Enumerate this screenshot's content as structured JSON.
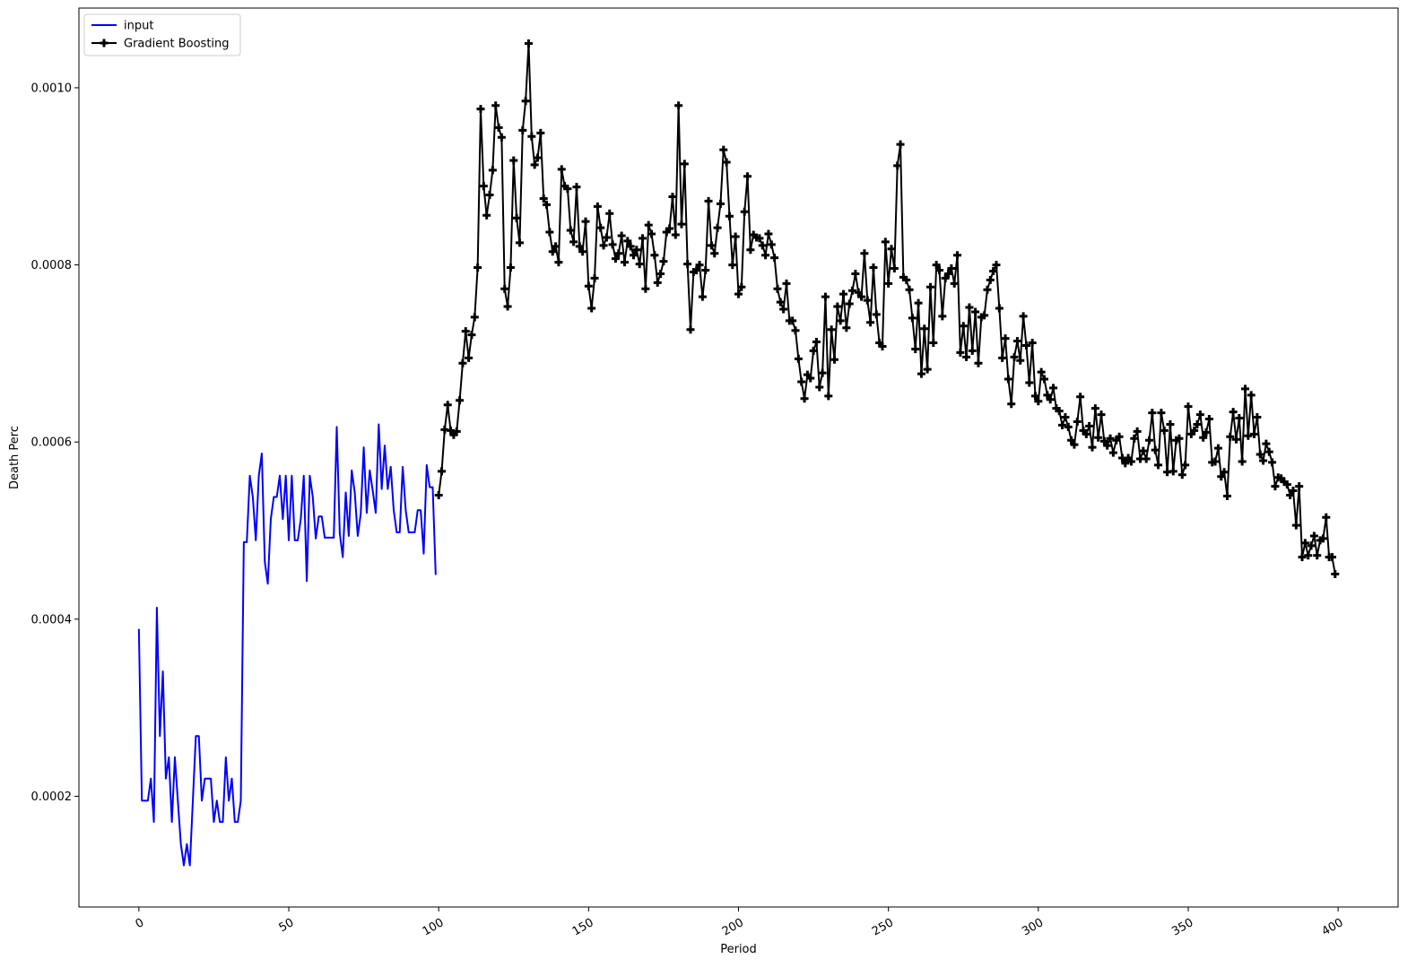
{
  "chart_data": {
    "type": "line",
    "xlabel": "Period",
    "ylabel": "Death Perc",
    "xlim": [
      -20,
      420
    ],
    "ylim": [
      7.5e-05,
      0.00109
    ],
    "x_ticks": [
      0,
      50,
      100,
      150,
      200,
      250,
      300,
      350,
      400
    ],
    "x_tick_labels": [
      "0",
      "50",
      "100",
      "150",
      "200",
      "250",
      "300",
      "350",
      "400"
    ],
    "y_ticks": [
      0.0002,
      0.0004,
      0.0006,
      0.0008,
      0.001
    ],
    "y_tick_labels": [
      "0.0002",
      "0.0004",
      "0.0006",
      "0.0008",
      "0.0010"
    ],
    "legend_position": "top-left",
    "grid": false,
    "series": [
      {
        "name": "input",
        "color": "#0000ff",
        "marker": "none",
        "x_start": 0,
        "values": [
          0.000389,
          0.000195,
          0.000195,
          0.000195,
          0.00022,
          0.000171,
          0.000413,
          0.000268,
          0.000341,
          0.00022,
          0.000244,
          0.000171,
          0.000244,
          0.000195,
          0.000146,
          0.000122,
          0.000146,
          0.000122,
          0.000195,
          0.000268,
          0.000268,
          0.000195,
          0.00022,
          0.00022,
          0.00022,
          0.000171,
          0.000195,
          0.000171,
          0.000171,
          0.000244,
          0.000195,
          0.00022,
          0.000171,
          0.000171,
          0.000195,
          0.000487,
          0.000487,
          0.000562,
          0.000538,
          0.000489,
          0.000562,
          0.000587,
          0.000465,
          0.00044,
          0.000513,
          0.000538,
          0.000538,
          0.000562,
          0.000513,
          0.000562,
          0.000489,
          0.000562,
          0.000489,
          0.000489,
          0.000513,
          0.000562,
          0.000443,
          0.000562,
          0.000538,
          0.000491,
          0.000516,
          0.000516,
          0.000492,
          0.000492,
          0.000492,
          0.000492,
          0.000617,
          0.000497,
          0.00047,
          0.000543,
          0.000494,
          0.000568,
          0.000543,
          0.000494,
          0.000519,
          0.000594,
          0.00052,
          0.000568,
          0.000545,
          0.00052,
          0.00062,
          0.000547,
          0.000596,
          0.000547,
          0.000572,
          0.000523,
          0.000498,
          0.000498,
          0.000572,
          0.000523,
          0.000498,
          0.000498,
          0.000498,
          0.000523,
          0.000523,
          0.000474,
          0.000574,
          0.000549,
          0.000549,
          0.00045
        ]
      },
      {
        "name": "Gradient Boosting",
        "color": "#000000",
        "marker": "plus",
        "x_start": 100,
        "values": [
          0.00054,
          0.000567,
          0.000614,
          0.000642,
          0.000613,
          0.000608,
          0.000612,
          0.000647,
          0.000689,
          0.000725,
          0.000695,
          0.000721,
          0.000741,
          0.000797,
          0.000976,
          0.000889,
          0.000856,
          0.000879,
          0.000907,
          0.00098,
          0.000955,
          0.000944,
          0.000773,
          0.000753,
          0.000797,
          0.000918,
          0.000853,
          0.000825,
          0.000952,
          0.000985,
          0.00105,
          0.000945,
          0.000913,
          0.000921,
          0.000949,
          0.000875,
          0.000868,
          0.000837,
          0.000815,
          0.000821,
          0.000803,
          0.000908,
          0.000889,
          0.000886,
          0.000839,
          0.000826,
          0.000888,
          0.000821,
          0.000815,
          0.000849,
          0.000776,
          0.000751,
          0.000785,
          0.000866,
          0.000842,
          0.000822,
          0.000831,
          0.000858,
          0.000823,
          0.000807,
          0.000813,
          0.000833,
          0.000803,
          0.000827,
          0.000821,
          0.000811,
          0.000817,
          0.000801,
          0.00083,
          0.000773,
          0.000845,
          0.000835,
          0.000811,
          0.00078,
          0.00079,
          0.000804,
          0.000837,
          0.000841,
          0.000877,
          0.000834,
          0.00098,
          0.000846,
          0.000914,
          0.000801,
          0.000727,
          0.000792,
          0.000794,
          0.0008,
          0.000764,
          0.000794,
          0.000872,
          0.000822,
          0.000813,
          0.000842,
          0.000869,
          0.00093,
          0.000916,
          0.000855,
          0.0008,
          0.000832,
          0.000767,
          0.000775,
          0.00086,
          0.0009,
          0.000817,
          0.000834,
          0.000831,
          0.00083,
          0.000822,
          0.000811,
          0.000835,
          0.000823,
          0.000808,
          0.000773,
          0.000758,
          0.00075,
          0.000779,
          0.000737,
          0.000737,
          0.000726,
          0.000694,
          0.000668,
          0.000649,
          0.000676,
          0.000672,
          0.000703,
          0.000713,
          0.000662,
          0.000678,
          0.000764,
          0.000652,
          0.000727,
          0.000693,
          0.000753,
          0.000737,
          0.000767,
          0.000729,
          0.000756,
          0.000771,
          0.00079,
          0.000769,
          0.000764,
          0.000813,
          0.00076,
          0.000735,
          0.000797,
          0.000744,
          0.000712,
          0.000708,
          0.000826,
          0.000779,
          0.000818,
          0.000796,
          0.000912,
          0.000936,
          0.000786,
          0.000783,
          0.000772,
          0.00074,
          0.000705,
          0.000757,
          0.000677,
          0.000728,
          0.000682,
          0.000775,
          0.000712,
          0.0008,
          0.000794,
          0.000742,
          0.000785,
          0.00079,
          0.000796,
          0.000779,
          0.000811,
          0.000701,
          0.000731,
          0.000696,
          0.000752,
          0.000703,
          0.000747,
          0.000689,
          0.000741,
          0.000743,
          0.000772,
          0.000783,
          0.000793,
          0.0008,
          0.000751,
          0.000695,
          0.000717,
          0.000671,
          0.000643,
          0.000696,
          0.000714,
          0.000692,
          0.000742,
          0.000709,
          0.000667,
          0.000712,
          0.000652,
          0.000646,
          0.000679,
          0.000671,
          0.000653,
          0.000648,
          0.000661,
          0.000638,
          0.000635,
          0.000619,
          0.000628,
          0.000617,
          0.000602,
          0.000597,
          0.000623,
          0.000651,
          0.000613,
          0.000609,
          0.000618,
          0.000594,
          0.000638,
          0.000605,
          0.000631,
          0.000601,
          0.000596,
          0.000604,
          0.000588,
          0.000602,
          0.000606,
          0.000582,
          0.000576,
          0.000582,
          0.000578,
          0.000604,
          0.000612,
          0.000581,
          0.00059,
          0.000581,
          0.000602,
          0.000633,
          0.000591,
          0.000574,
          0.000633,
          0.000613,
          0.000566,
          0.00062,
          0.000567,
          0.000602,
          0.000604,
          0.000563,
          0.000574,
          0.00064,
          0.000609,
          0.000613,
          0.00062,
          0.000631,
          0.000605,
          0.000611,
          0.000626,
          0.000577,
          0.000578,
          0.000593,
          0.000561,
          0.000566,
          0.000539,
          0.000606,
          0.000634,
          0.000603,
          0.000627,
          0.000578,
          0.00066,
          0.000607,
          0.000653,
          0.000609,
          0.000628,
          0.000586,
          0.000579,
          0.000598,
          0.000589,
          0.000577,
          0.00055,
          0.00056,
          0.000559,
          0.000555,
          0.000552,
          0.00054,
          0.000545,
          0.000506,
          0.00055,
          0.00047,
          0.000486,
          0.000472,
          0.000483,
          0.000494,
          0.000472,
          0.000489,
          0.000491,
          0.000515,
          0.00047,
          0.00047,
          0.000451
        ]
      }
    ]
  }
}
